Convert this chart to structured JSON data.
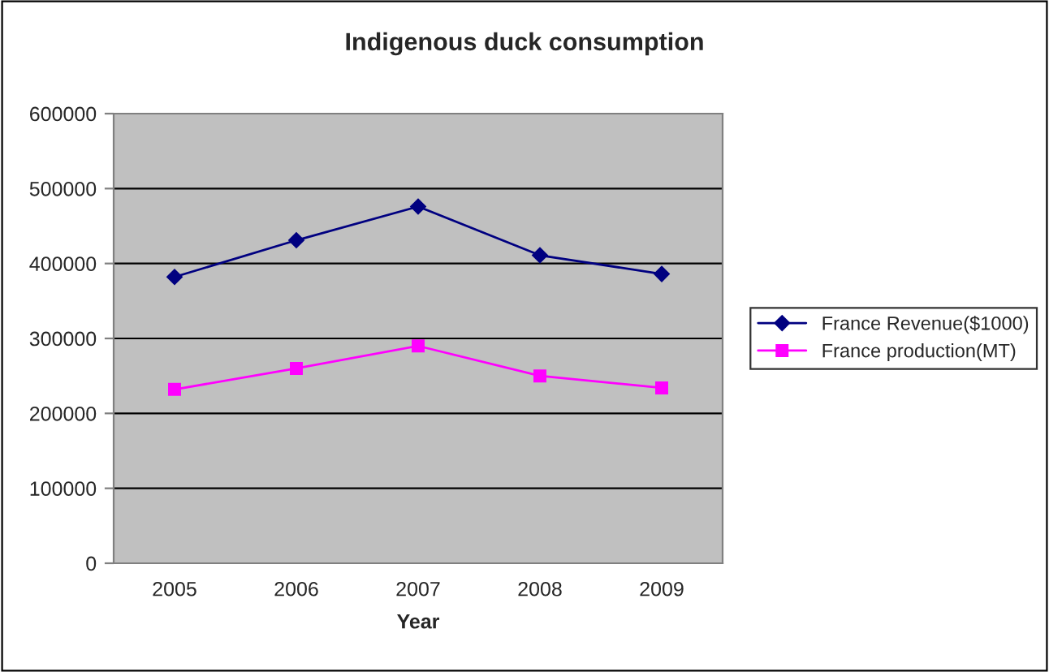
{
  "chart_data": {
    "type": "line",
    "title": "Indigenous duck consumption",
    "xlabel": "Year",
    "categories": [
      "2005",
      "2006",
      "2007",
      "2008",
      "2009"
    ],
    "series": [
      {
        "name": "France Revenue($1000)",
        "color": "#000080",
        "marker": "diamond",
        "values": [
          382000,
          431000,
          476000,
          411000,
          386000
        ]
      },
      {
        "name": "France production(MT)",
        "color": "#ff00ff",
        "marker": "square",
        "values": [
          232000,
          260000,
          290000,
          250000,
          234000
        ]
      }
    ],
    "ylim": [
      0,
      600000
    ],
    "yticks": [
      0,
      100000,
      200000,
      300000,
      400000,
      500000,
      600000
    ],
    "grid": "y",
    "legend": "right"
  }
}
